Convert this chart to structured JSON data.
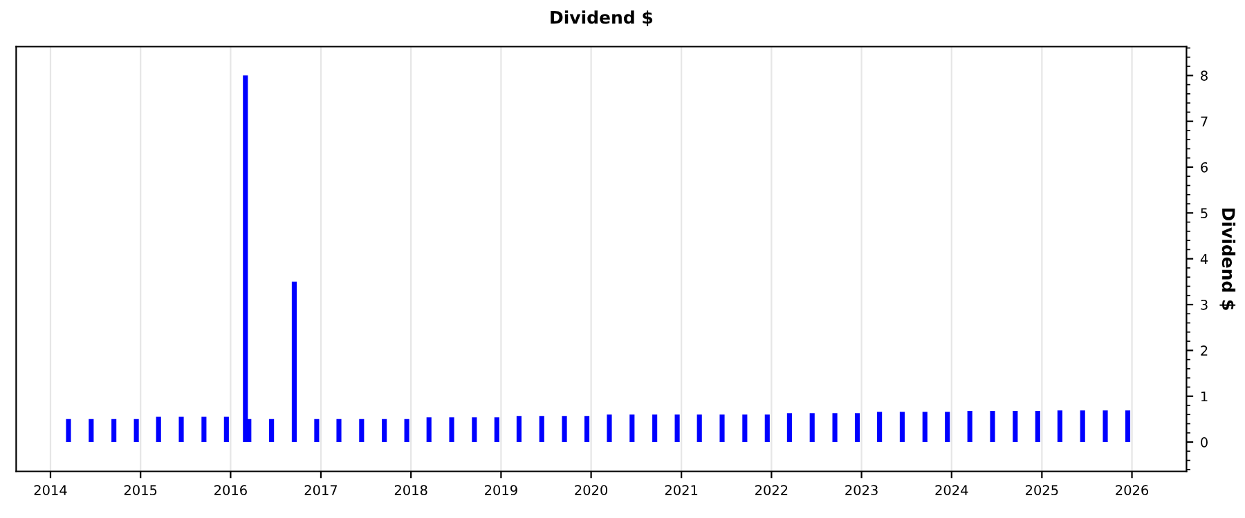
{
  "chart_data": {
    "type": "bar",
    "title": "Dividend $",
    "ylabel": "Dividend $",
    "x": [
      "2014-03-15",
      "2014-06-15",
      "2014-09-15",
      "2014-12-15",
      "2015-03-15",
      "2015-06-15",
      "2015-09-15",
      "2015-12-15",
      "2016-03-01",
      "2016-03-15",
      "2016-06-15",
      "2016-09-15",
      "2016-12-15",
      "2017-03-15",
      "2017-06-15",
      "2017-09-15",
      "2017-12-15",
      "2018-03-15",
      "2018-06-15",
      "2018-09-15",
      "2018-12-15",
      "2019-03-15",
      "2019-06-15",
      "2019-09-15",
      "2019-12-15",
      "2020-03-15",
      "2020-06-15",
      "2020-09-15",
      "2020-12-15",
      "2021-03-15",
      "2021-06-15",
      "2021-09-15",
      "2021-12-15",
      "2022-03-15",
      "2022-06-15",
      "2022-09-15",
      "2022-12-15",
      "2023-03-15",
      "2023-06-15",
      "2023-09-15",
      "2023-12-15",
      "2024-03-15",
      "2024-06-15",
      "2024-09-15",
      "2024-12-15",
      "2025-03-15",
      "2025-06-15",
      "2025-09-15",
      "2025-12-15"
    ],
    "values": [
      0.5,
      0.5,
      0.5,
      0.5,
      0.55,
      0.55,
      0.55,
      0.55,
      8.0,
      0.5,
      0.5,
      3.5,
      0.5,
      0.5,
      0.5,
      0.5,
      0.5,
      0.54,
      0.54,
      0.54,
      0.54,
      0.57,
      0.57,
      0.57,
      0.57,
      0.6,
      0.6,
      0.6,
      0.6,
      0.6,
      0.6,
      0.6,
      0.6,
      0.63,
      0.63,
      0.63,
      0.63,
      0.66,
      0.66,
      0.66,
      0.66,
      0.68,
      0.68,
      0.68,
      0.68,
      0.69,
      0.69,
      0.69,
      0.69
    ],
    "color": "#0000ff",
    "xlim": [
      "2013-08-15",
      "2026-08-10"
    ],
    "xticks": [
      {
        "value": "2014",
        "label": "2014"
      },
      {
        "value": "2015",
        "label": "2015"
      },
      {
        "value": "2016",
        "label": "2016"
      },
      {
        "value": "2017",
        "label": "2017"
      },
      {
        "value": "2018",
        "label": "2018"
      },
      {
        "value": "2019",
        "label": "2019"
      },
      {
        "value": "2020",
        "label": "2020"
      },
      {
        "value": "2021",
        "label": "2021"
      },
      {
        "value": "2022",
        "label": "2022"
      },
      {
        "value": "2023",
        "label": "2023"
      },
      {
        "value": "2024",
        "label": "2024"
      },
      {
        "value": "2025",
        "label": "2025"
      },
      {
        "value": "2026",
        "label": "2026"
      }
    ],
    "ylim": [
      -0.64,
      8.63
    ],
    "yticks": [
      0,
      1,
      2,
      3,
      4,
      5,
      6,
      7,
      8
    ],
    "grid": "x",
    "legend": false
  }
}
